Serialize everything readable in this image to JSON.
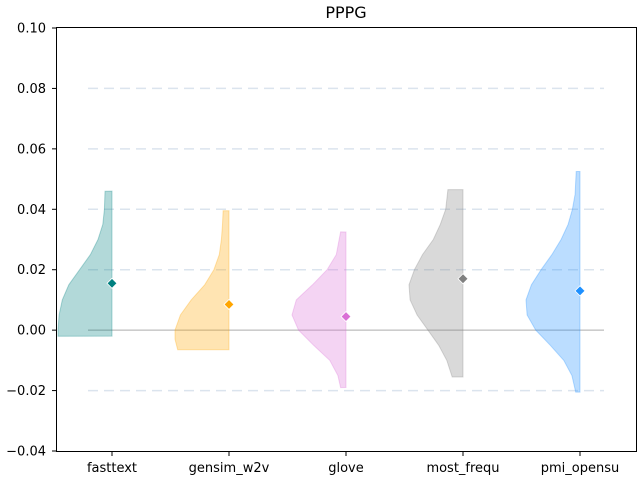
{
  "chart_data": {
    "type": "violin",
    "title": "PPPG",
    "xlabel": "",
    "ylabel": "",
    "ylim": [
      -0.04,
      0.1
    ],
    "yticks": [
      -0.04,
      -0.02,
      0.0,
      0.02,
      0.04,
      0.06,
      0.08,
      0.1
    ],
    "ytick_labels": [
      "−0.04",
      "−0.02",
      "0.00",
      "0.02",
      "0.04",
      "0.06",
      "0.08",
      "0.10"
    ],
    "grid": {
      "horizontal_dashed": true,
      "values": [
        -0.02,
        0.02,
        0.04,
        0.06,
        0.08
      ]
    },
    "reference_line": 0.0,
    "side": "left-half",
    "categories": [
      "fasttext",
      "gensim_w2v",
      "glove",
      "most_frequ",
      "pmi_opensu"
    ],
    "series": [
      {
        "category": "fasttext",
        "color": "#008080",
        "min": -0.002,
        "max": 0.046,
        "mean": 0.0155,
        "density": [
          [
            -0.002,
            1.0
          ],
          [
            0.0,
            1.0
          ],
          [
            0.005,
            0.98
          ],
          [
            0.01,
            0.92
          ],
          [
            0.015,
            0.8
          ],
          [
            0.02,
            0.6
          ],
          [
            0.025,
            0.4
          ],
          [
            0.03,
            0.26
          ],
          [
            0.035,
            0.17
          ],
          [
            0.04,
            0.14
          ],
          [
            0.046,
            0.13
          ]
        ]
      },
      {
        "category": "gensim_w2v",
        "color": "#FFA500",
        "min": -0.0065,
        "max": 0.0395,
        "mean": 0.0085,
        "density": [
          [
            -0.0065,
            0.95
          ],
          [
            -0.003,
            1.0
          ],
          [
            0.0,
            1.0
          ],
          [
            0.005,
            0.9
          ],
          [
            0.01,
            0.7
          ],
          [
            0.015,
            0.45
          ],
          [
            0.02,
            0.28
          ],
          [
            0.025,
            0.18
          ],
          [
            0.03,
            0.14
          ],
          [
            0.035,
            0.12
          ],
          [
            0.0395,
            0.11
          ]
        ]
      },
      {
        "category": "glove",
        "color": "#DA70D6",
        "min": -0.019,
        "max": 0.0325,
        "mean": 0.0045,
        "density": [
          [
            -0.019,
            0.1
          ],
          [
            -0.015,
            0.15
          ],
          [
            -0.01,
            0.3
          ],
          [
            -0.005,
            0.6
          ],
          [
            0.0,
            0.88
          ],
          [
            0.005,
            1.0
          ],
          [
            0.01,
            0.92
          ],
          [
            0.015,
            0.62
          ],
          [
            0.02,
            0.35
          ],
          [
            0.025,
            0.18
          ],
          [
            0.0325,
            0.1
          ]
        ]
      },
      {
        "category": "most_frequ",
        "color": "#808080",
        "min": -0.0155,
        "max": 0.0465,
        "mean": 0.017,
        "density": [
          [
            -0.0155,
            0.2
          ],
          [
            -0.01,
            0.3
          ],
          [
            -0.005,
            0.45
          ],
          [
            0.0,
            0.65
          ],
          [
            0.005,
            0.85
          ],
          [
            0.01,
            0.98
          ],
          [
            0.015,
            1.0
          ],
          [
            0.02,
            0.9
          ],
          [
            0.025,
            0.75
          ],
          [
            0.03,
            0.55
          ],
          [
            0.035,
            0.42
          ],
          [
            0.04,
            0.32
          ],
          [
            0.0465,
            0.28
          ]
        ]
      },
      {
        "category": "pmi_opensu",
        "color": "#1E90FF",
        "min": -0.0205,
        "max": 0.0525,
        "mean": 0.013,
        "density": [
          [
            -0.0205,
            0.08
          ],
          [
            -0.015,
            0.15
          ],
          [
            -0.01,
            0.3
          ],
          [
            -0.005,
            0.55
          ],
          [
            0.0,
            0.82
          ],
          [
            0.005,
            0.98
          ],
          [
            0.01,
            1.0
          ],
          [
            0.015,
            0.9
          ],
          [
            0.02,
            0.72
          ],
          [
            0.025,
            0.52
          ],
          [
            0.03,
            0.35
          ],
          [
            0.035,
            0.22
          ],
          [
            0.04,
            0.14
          ],
          [
            0.045,
            0.09
          ],
          [
            0.0525,
            0.07
          ]
        ]
      }
    ]
  }
}
